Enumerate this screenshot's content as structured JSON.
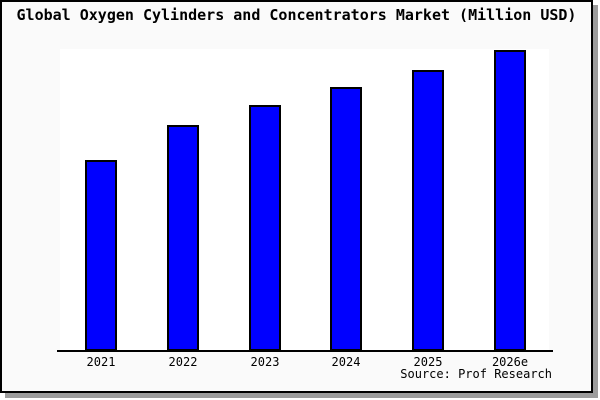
{
  "card": {
    "background": "#fafafa",
    "border_color": "#000000",
    "shadow_color": "#9c9c9c"
  },
  "title": "Global Oxygen Cylinders and Concentrators Market (Million USD)",
  "source_label": "Source: Prof Research",
  "chart_data": {
    "type": "bar",
    "title": "Global Oxygen Cylinders and Concentrators Market (Million USD)",
    "unit": "Million USD",
    "categories": [
      "2021",
      "2022",
      "2023",
      "2024",
      "2025",
      "2026e"
    ],
    "values": [
      63.4,
      75.1,
      81.7,
      87.7,
      93.4,
      100
    ],
    "value_scale": "relative index estimated from bar heights (2026e = 100); y-axis has no tick labels in the image",
    "xlabel": "",
    "ylabel": "",
    "ylim": [
      0,
      107
    ],
    "grid": false,
    "legend": false,
    "bar_color": "#0000ff",
    "bar_border_color": "#000000",
    "plot_background": "#ffffff",
    "source": "Source: Prof Research"
  }
}
